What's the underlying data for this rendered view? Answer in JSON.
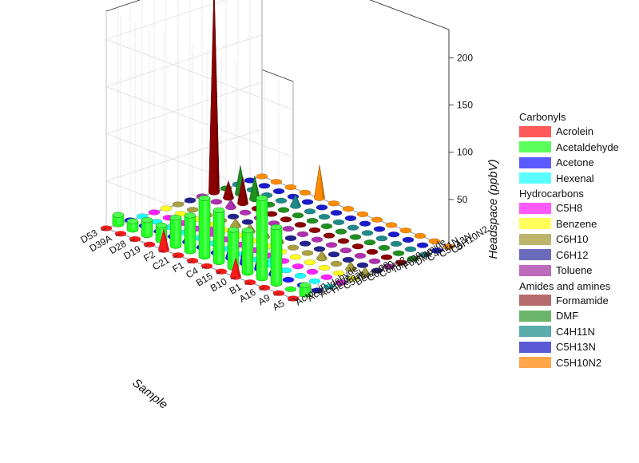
{
  "chart_data": {
    "type": "bar3d",
    "zlabel": "Headspace (ppbV)",
    "xlabel": "Sample",
    "zlim": [
      0,
      230
    ],
    "z_ticks": [
      0,
      50,
      100,
      150,
      200
    ],
    "grid": true,
    "legend_position": "right",
    "samples": [
      "A5",
      "A9",
      "A16",
      "B1",
      "B10",
      "B15",
      "C4",
      "F1",
      "C21",
      "F2",
      "D19",
      "D28",
      "D39A",
      "D53"
    ],
    "compounds": [
      "Acrolein",
      "Acetaldehyde",
      "Acetone",
      "Hexenal",
      "C5H8",
      "Benzene",
      "C6H10",
      "C6H12",
      "Toluene",
      "Formamide",
      "DMF",
      "C4H11N",
      "C5H13N",
      "C5H10N2"
    ],
    "legend_groups": [
      {
        "title": "Carbonyls",
        "items": [
          {
            "label": "Acrolein",
            "color": "#ff5a5a"
          },
          {
            "label": "Acetaldehyde",
            "color": "#5aff5a"
          },
          {
            "label": "Acetone",
            "color": "#5a5aff"
          },
          {
            "label": "Hexenal",
            "color": "#5affff"
          }
        ]
      },
      {
        "title": "Hydrocarbons",
        "items": [
          {
            "label": "C5H8",
            "color": "#ff5aff"
          },
          {
            "label": "Benzene",
            "color": "#ffff5a"
          },
          {
            "label": "C6H10",
            "color": "#bdb56b"
          },
          {
            "label": "C6H12",
            "color": "#6b6bbd"
          },
          {
            "label": "Toluene",
            "color": "#bd6bbd"
          }
        ]
      },
      {
        "title": "Amides and amines",
        "items": [
          {
            "label": "Formamide",
            "color": "#b56b6b"
          },
          {
            "label": "DMF",
            "color": "#6bb56b"
          },
          {
            "label": "C4H11N",
            "color": "#5aadad"
          },
          {
            "label": "C5H13N",
            "color": "#5a5ad6"
          },
          {
            "label": "C5H10N2",
            "color": "#ffa54a"
          }
        ]
      }
    ],
    "series_colors": [
      "#ff1a1a",
      "#22ff22",
      "#1a1aff",
      "#22ffff",
      "#ff22ff",
      "#ffff22",
      "#aaa040",
      "#22228f",
      "#b030b0",
      "#8b0000",
      "#1f8f1f",
      "#208a8a",
      "#1a1acc",
      "#ff8c00"
    ],
    "series_shapes": [
      "cone",
      "cylinder",
      "cone",
      "cone",
      "cone",
      "cone",
      "cone",
      "cone",
      "cone",
      "cone",
      "cone",
      "cone",
      "cone",
      "cone"
    ],
    "values": [
      [
        3,
        3,
        3,
        3,
        20,
        3,
        3,
        3,
        3,
        22,
        3,
        3,
        3,
        3
      ],
      [
        10,
        2,
        60,
        85,
        45,
        40,
        55,
        62,
        38,
        30,
        16,
        16,
        9,
        10
      ],
      [
        1,
        1,
        2,
        12,
        20,
        30,
        18,
        1,
        1,
        8,
        1,
        5,
        1,
        1
      ],
      [
        1,
        1,
        1,
        1,
        12,
        1,
        1,
        1,
        1,
        1,
        1,
        1,
        1,
        1
      ],
      [
        1,
        1,
        1,
        1,
        1,
        1,
        1,
        1,
        1,
        8,
        1,
        1,
        1,
        1
      ],
      [
        1,
        1,
        1,
        1,
        1,
        1,
        1,
        1,
        1,
        1,
        1,
        1,
        1,
        1
      ],
      [
        8,
        8,
        1,
        8,
        1,
        1,
        8,
        10,
        8,
        8,
        1,
        1,
        1,
        1
      ],
      [
        1,
        1,
        1,
        1,
        1,
        1,
        1,
        1,
        1,
        1,
        1,
        1,
        1,
        1
      ],
      [
        1,
        1,
        1,
        1,
        1,
        1,
        1,
        1,
        1,
        1,
        1,
        8,
        1,
        1
      ],
      [
        1,
        1,
        1,
        1,
        1,
        1,
        1,
        1,
        1,
        1,
        1,
        28,
        18,
        225
      ],
      [
        1,
        1,
        1,
        1,
        1,
        1,
        1,
        1,
        1,
        1,
        1,
        25,
        30,
        1
      ],
      [
        1,
        1,
        1,
        1,
        1,
        1,
        1,
        1,
        1,
        12,
        1,
        1,
        1,
        1
      ],
      [
        1,
        1,
        1,
        1,
        1,
        1,
        1,
        1,
        1,
        1,
        1,
        1,
        1,
        1
      ],
      [
        1,
        1,
        1,
        1,
        1,
        1,
        1,
        1,
        1,
        35,
        1,
        1,
        1,
        1
      ]
    ],
    "samples_tick_label_note": "",
    "compounds_axis_label": ""
  }
}
